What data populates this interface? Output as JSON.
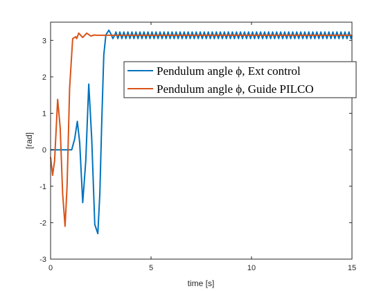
{
  "chart_data": {
    "type": "line",
    "xlabel": "time [s]",
    "ylabel": "[rad]",
    "xlim": [
      0,
      15
    ],
    "ylim": [
      -3,
      3.5
    ],
    "xticks": [
      "0",
      "5",
      "10",
      "15"
    ],
    "yticks": [
      "-3",
      "-2",
      "-1",
      "0",
      "1",
      "2",
      "3"
    ],
    "grid": false,
    "legend_position": "top-right",
    "series": [
      {
        "name": "Pendulum angle ϕ, Ext control",
        "color": "#0072BD",
        "x": [
          0,
          1.05,
          1.2,
          1.33,
          1.45,
          1.6,
          1.75,
          1.9,
          2.05,
          2.2,
          2.35,
          2.45,
          2.55,
          2.65,
          2.75,
          2.9,
          3.0,
          3.1,
          3.2
        ],
        "y": [
          0,
          0,
          0.3,
          0.78,
          0.2,
          -1.45,
          -0.3,
          1.8,
          0.3,
          -2.05,
          -2.3,
          -1.2,
          0.8,
          2.6,
          3.15,
          3.28,
          3.18,
          3.05,
          3.15
        ],
        "steady_state": {
          "value": 3.14,
          "oscillation_amplitude": 0.09,
          "oscillation_period": 0.2
        }
      },
      {
        "name": "Pendulum angle ϕ, Guide PILCO",
        "color": "#D95319",
        "x": [
          0,
          0.1,
          0.2,
          0.35,
          0.48,
          0.6,
          0.72,
          0.82,
          0.95,
          1.1,
          1.25,
          1.3,
          1.4,
          1.6,
          1.8,
          2.0,
          2.2
        ],
        "y": [
          -0.2,
          -0.7,
          -0.3,
          1.38,
          0.6,
          -1.2,
          -2.1,
          -1.0,
          1.7,
          3.05,
          3.1,
          3.05,
          3.2,
          3.08,
          3.2,
          3.12,
          3.15
        ],
        "steady_state": {
          "value": 3.14,
          "oscillation_amplitude": 0.0,
          "oscillation_period": 0.3
        }
      }
    ]
  }
}
